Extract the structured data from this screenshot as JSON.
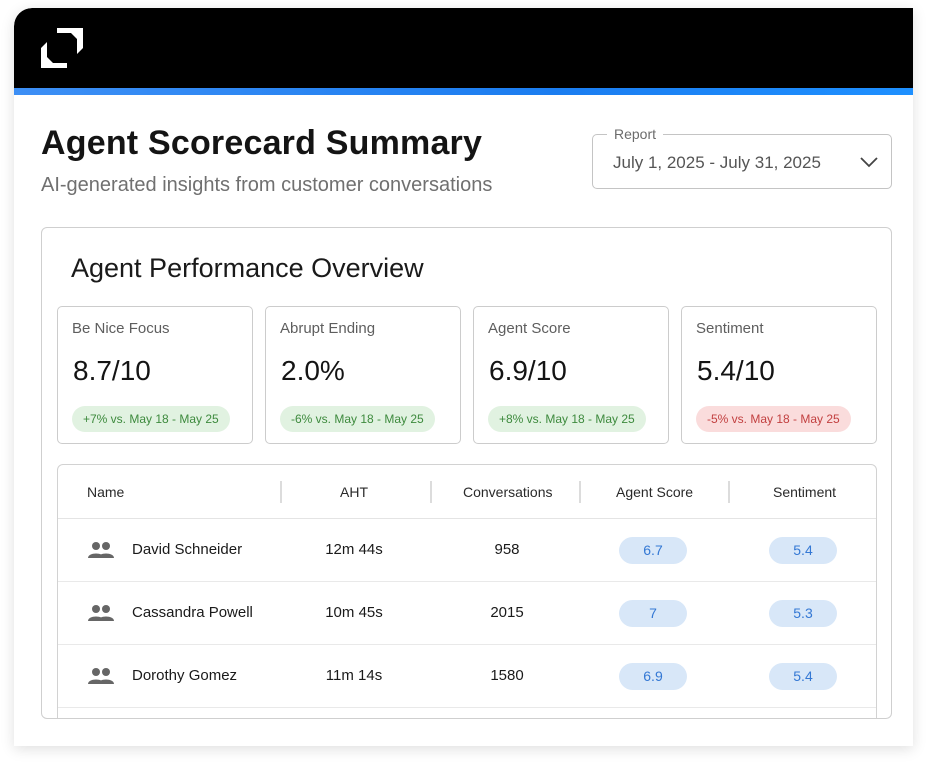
{
  "header": {
    "logo_icon": "brand-logo-icon"
  },
  "page": {
    "title": "Agent Scorecard Summary",
    "subtitle": "AI-generated insights from customer conversations"
  },
  "report": {
    "label": "Report",
    "value": "July 1, 2025 - July 31, 2025",
    "icon": "chevron-down-icon"
  },
  "panel": {
    "title": "Agent Performance Overview",
    "metrics": [
      {
        "label": "Be Nice Focus",
        "value": "8.7/10",
        "change": "+7% vs. May 18 - May 25",
        "trend": "up"
      },
      {
        "label": "Abrupt Ending",
        "value": "2.0%",
        "change": "-6% vs. May 18 - May 25",
        "trend": "up"
      },
      {
        "label": "Agent Score",
        "value": "6.9/10",
        "change": "+8% vs. May 18 - May 25",
        "trend": "up"
      },
      {
        "label": "Sentiment",
        "value": "5.4/10",
        "change": "-5% vs. May 18 - May 25",
        "trend": "down"
      }
    ]
  },
  "table": {
    "columns": [
      "Name",
      "AHT",
      "Conversations",
      "Agent Score",
      "Sentiment"
    ],
    "rows": [
      {
        "name": "David Schneider",
        "aht": "12m 44s",
        "conversations": "958",
        "agent_score": "6.7",
        "sentiment": "5.4"
      },
      {
        "name": "Cassandra Powell",
        "aht": "10m 45s",
        "conversations": "2015",
        "agent_score": "7",
        "sentiment": "5.3"
      },
      {
        "name": "Dorothy Gomez",
        "aht": "11m 14s",
        "conversations": "1580",
        "agent_score": "6.9",
        "sentiment": "5.4"
      }
    ]
  },
  "colors": {
    "accent_blue": "#1b7df0",
    "positive_bg": "#e1f2e1",
    "negative_bg": "#fadcdc",
    "pill_bg": "#d8e7f8"
  }
}
